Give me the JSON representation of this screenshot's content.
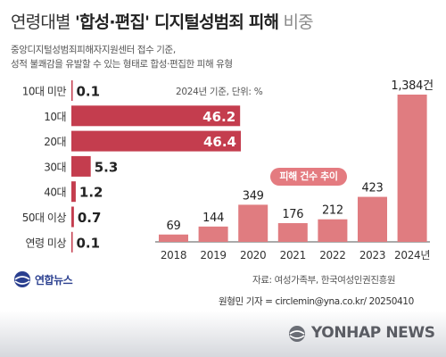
{
  "title": {
    "part1": "연령대별 ",
    "part2": "'합성·편집' 디지털성범죄 피해",
    "part3": " 비중"
  },
  "subtitle": {
    "line1": "중앙디지털성범죄피해자지원센터 접수 기준,",
    "line2": "성적 불쾌감을 유발할 수 있는 형태로 합성·편집한 피해 유형"
  },
  "colors": {
    "bar_fill": "#c43d4e",
    "col_fill": "#e07c80",
    "badge": "#e47b80",
    "footer_mark": "#6b6e76"
  },
  "chart_data": [
    {
      "type": "bar",
      "orientation": "horizontal",
      "annotation": "2024년 기준, 단위: %",
      "categories": [
        "10대 미만",
        "10대",
        "20대",
        "30대",
        "40대",
        "50대 이상",
        "연령 미상"
      ],
      "values": [
        0.1,
        46.2,
        46.4,
        5.3,
        1.2,
        0.7,
        0.1
      ],
      "value_labels": [
        "0.1",
        "46.2",
        "46.4",
        "5.3",
        "1.2",
        "0.7",
        "0.1"
      ],
      "xlim": [
        0,
        46.4
      ]
    },
    {
      "type": "bar",
      "annotation": "피해 건수 추이",
      "categories": [
        "2018",
        "2019",
        "2020",
        "2021",
        "2022",
        "2023",
        "2024년"
      ],
      "values": [
        69,
        144,
        349,
        176,
        212,
        423,
        1384
      ],
      "value_labels": [
        "69",
        "144",
        "349",
        "176",
        "212",
        "423",
        "1,384건"
      ],
      "ylim": [
        0,
        1384
      ]
    }
  ],
  "footer": {
    "source": "자료: 여성가족부, 한국여성인권진흥원",
    "byline": "원형민 기자 = circlemin@yna.co.kr/ 20250410",
    "logo_text": "연합뉴스",
    "brand": "YONHAP NEWS"
  }
}
